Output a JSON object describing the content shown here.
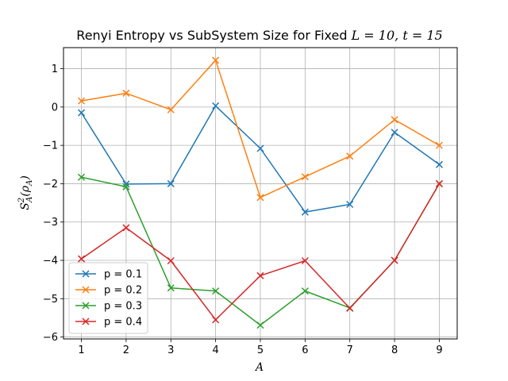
{
  "chart_data": {
    "type": "line",
    "title": "Renyi Entropy vs SubSystem Size for Fixed L = 10, t = 15",
    "title_plain": "Renyi Entropy vs SubSystem Size for Fixed ",
    "title_math": "L = 10, t = 15",
    "xlabel": "A",
    "ylabel": "S²_A(ρ_A)",
    "x": [
      1,
      2,
      3,
      4,
      5,
      6,
      7,
      8,
      9
    ],
    "xlim": [
      0.6,
      9.4
    ],
    "ylim": [
      -6.05,
      1.55
    ],
    "xticks": [
      1,
      2,
      3,
      4,
      5,
      6,
      7,
      8,
      9
    ],
    "yticks": [
      1,
      0,
      -1,
      -2,
      -3,
      -4,
      -5,
      -6
    ],
    "grid": true,
    "legend_position": "lower-left",
    "marker": "x",
    "series": [
      {
        "name": "p = 0.1",
        "color": "#1f77b4",
        "values": [
          -0.15,
          -2.01,
          -2.0,
          0.03,
          -1.08,
          -2.74,
          -2.54,
          -0.66,
          -1.5
        ]
      },
      {
        "name": "p = 0.2",
        "color": "#ff7f0e",
        "values": [
          0.16,
          0.36,
          -0.07,
          1.22,
          -2.36,
          -1.82,
          -1.28,
          -0.33,
          -1.0
        ]
      },
      {
        "name": "p = 0.3",
        "color": "#2ca02c",
        "values": [
          -1.83,
          -2.08,
          -4.72,
          -4.8,
          -5.69,
          -4.8,
          -5.24,
          -4.0,
          -2.0
        ]
      },
      {
        "name": "p = 0.4",
        "color": "#d62728",
        "values": [
          -3.96,
          -3.15,
          -4.01,
          -5.55,
          -4.4,
          -4.01,
          -5.25,
          -4.0,
          -2.0
        ]
      }
    ]
  }
}
